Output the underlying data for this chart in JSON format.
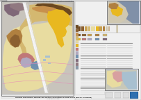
{
  "outer_bg": "#e8e8e8",
  "page_bg": "#f2f2f2",
  "map_bg": "#c8c4bc",
  "border_color": "#888888",
  "colors": {
    "yellow_cream": "#e8dca0",
    "tan_light": "#d4b870",
    "tan_medium": "#c8a050",
    "brown_light": "#b08040",
    "brown_medium": "#8b6030",
    "brown_dark": "#6b4820",
    "reddish_brown": "#a05030",
    "pink_light": "#d8a0a0",
    "pink_medium": "#c07878",
    "pink_blue": "#b0a8c0",
    "gray_blue": "#8898a8",
    "purple": "#806878",
    "mauve": "#907880",
    "white_road": "#f5f5f5",
    "blue_water": "#7090b0",
    "blue_light": "#a8c0d0",
    "green_gray": "#909878",
    "olive": "#787848",
    "orange_tan": "#c8904c",
    "cream": "#e8e0c8",
    "yellow_gold": "#e8b820",
    "pink_fault": "#e888b8",
    "gray_light": "#c8c8c8",
    "text_gray": "#666666",
    "dark_gray": "#444444"
  },
  "title_text": "Offshore and Onshore Geology and Tectonic Implications of Point Reyes (Big Sur, California)",
  "subtitle_text": "John Dileo Munsell et al."
}
